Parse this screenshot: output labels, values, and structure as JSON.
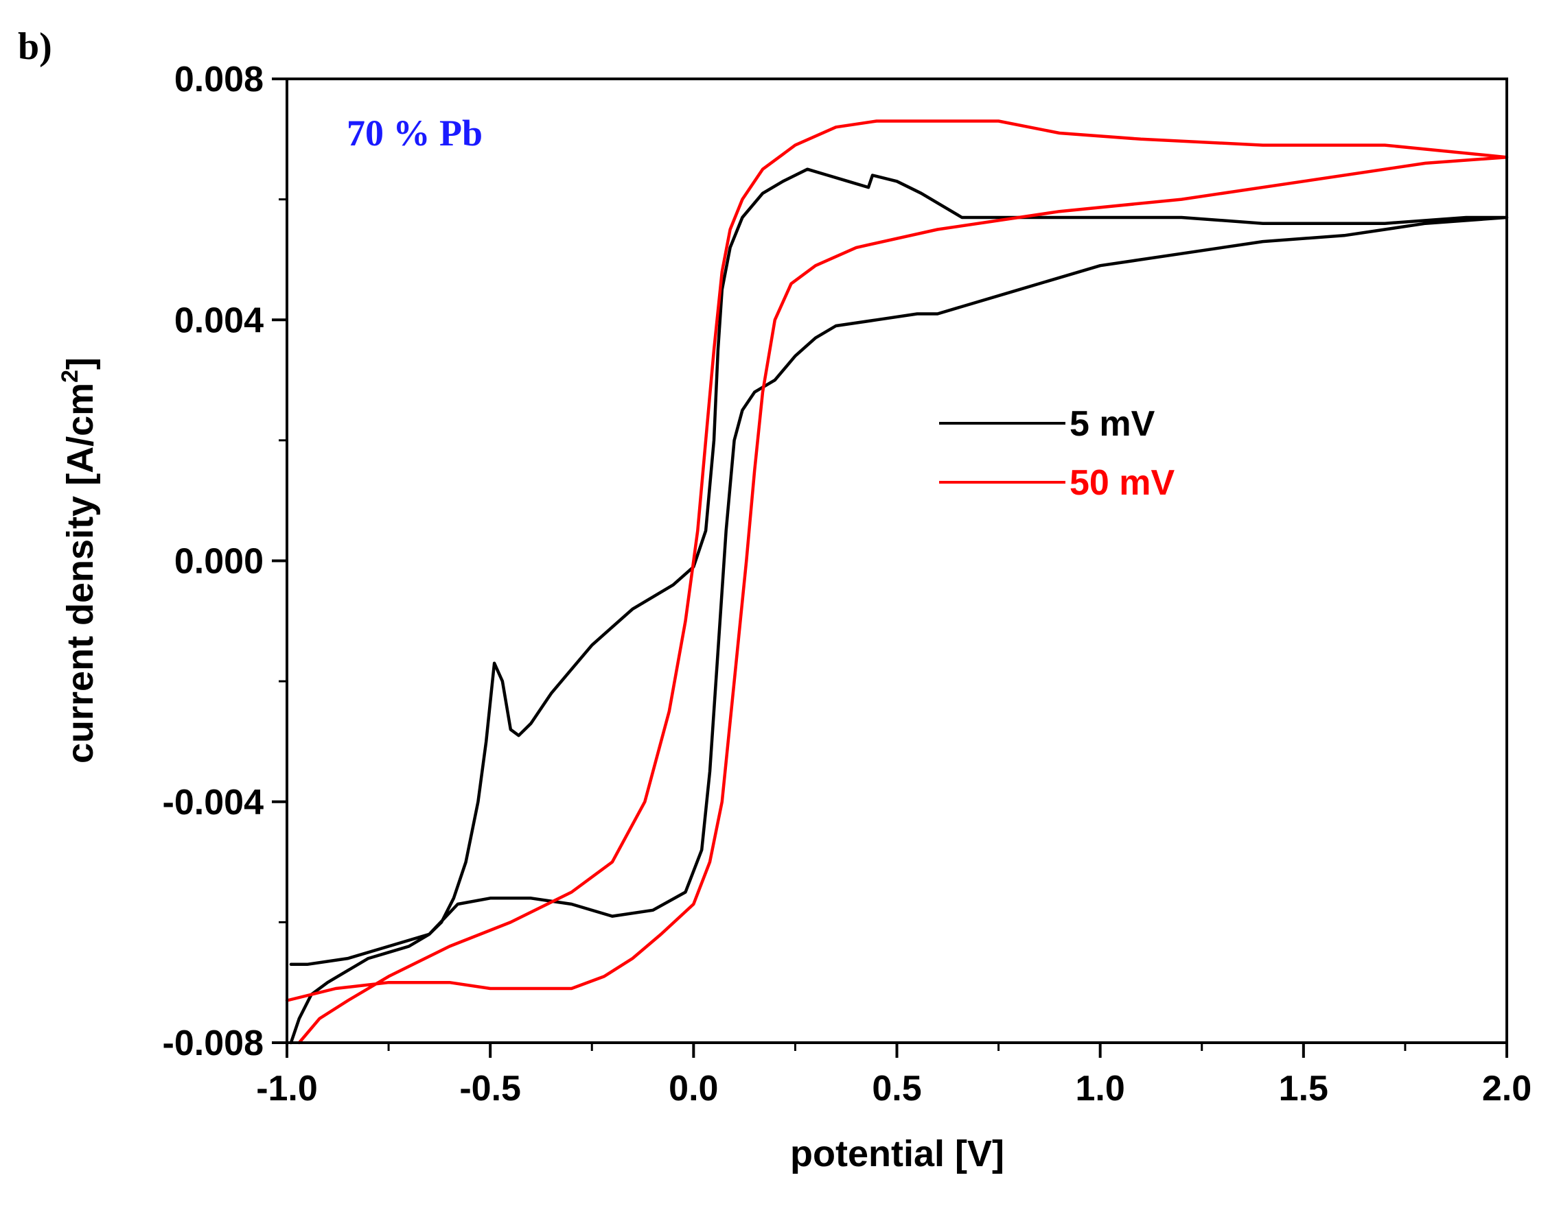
{
  "chart_data": {
    "type": "line",
    "panel_label": "b)",
    "annotation": "70 % Pb",
    "xlabel": "potential [V]",
    "ylabel_main": "current density [A/cm",
    "ylabel_sup": "2",
    "ylabel_close": "]",
    "xlim": [
      -1.0,
      2.0
    ],
    "ylim": [
      -0.008,
      0.008
    ],
    "xticks": [
      -1.0,
      -0.5,
      0.0,
      0.5,
      1.0,
      1.5,
      2.0
    ],
    "xtick_labels": [
      "-1.0",
      "-0.5",
      "0.0",
      "0.5",
      "1.0",
      "1.5",
      "2.0"
    ],
    "yticks": [
      -0.008,
      -0.004,
      0.0,
      0.004,
      0.008
    ],
    "ytick_labels": [
      "-0.008",
      "-0.004",
      "0.000",
      "0.004",
      "0.008"
    ],
    "legend_position": "center-right",
    "colors": {
      "annotation": "#1a1aff",
      "axis": "#000000"
    },
    "series": [
      {
        "name": "5 mV",
        "color": "#000000",
        "points": [
          [
            -0.99,
            -0.008
          ],
          [
            -0.97,
            -0.0076
          ],
          [
            -0.94,
            -0.0072
          ],
          [
            -0.9,
            -0.007
          ],
          [
            -0.85,
            -0.0068
          ],
          [
            -0.8,
            -0.0066
          ],
          [
            -0.75,
            -0.0065
          ],
          [
            -0.7,
            -0.0064
          ],
          [
            -0.65,
            -0.0062
          ],
          [
            -0.62,
            -0.006
          ],
          [
            -0.59,
            -0.0056
          ],
          [
            -0.56,
            -0.005
          ],
          [
            -0.53,
            -0.004
          ],
          [
            -0.51,
            -0.003
          ],
          [
            -0.49,
            -0.0017
          ],
          [
            -0.47,
            -0.002
          ],
          [
            -0.45,
            -0.0028
          ],
          [
            -0.43,
            -0.0029
          ],
          [
            -0.4,
            -0.0027
          ],
          [
            -0.35,
            -0.0022
          ],
          [
            -0.3,
            -0.0018
          ],
          [
            -0.25,
            -0.0014
          ],
          [
            -0.2,
            -0.0011
          ],
          [
            -0.15,
            -0.0008
          ],
          [
            -0.1,
            -0.0006
          ],
          [
            -0.05,
            -0.0004
          ],
          [
            0.0,
            -0.0001
          ],
          [
            0.03,
            0.0005
          ],
          [
            0.05,
            0.002
          ],
          [
            0.06,
            0.0035
          ],
          [
            0.07,
            0.0045
          ],
          [
            0.09,
            0.0052
          ],
          [
            0.12,
            0.0057
          ],
          [
            0.17,
            0.0061
          ],
          [
            0.22,
            0.0063
          ],
          [
            0.28,
            0.0065
          ],
          [
            0.33,
            0.0064
          ],
          [
            0.38,
            0.0063
          ],
          [
            0.43,
            0.0062
          ],
          [
            0.44,
            0.0064
          ],
          [
            0.5,
            0.0063
          ],
          [
            0.56,
            0.0061
          ],
          [
            0.61,
            0.0059
          ],
          [
            0.66,
            0.0057
          ],
          [
            0.8,
            0.0057
          ],
          [
            1.0,
            0.0057
          ],
          [
            1.2,
            0.0057
          ],
          [
            1.4,
            0.0056
          ],
          [
            1.5,
            0.0056
          ],
          [
            1.7,
            0.0056
          ],
          [
            1.9,
            0.0057
          ],
          [
            2.0,
            0.0057
          ],
          [
            1.8,
            0.0056
          ],
          [
            1.6,
            0.0054
          ],
          [
            1.4,
            0.0053
          ],
          [
            1.2,
            0.0051
          ],
          [
            1.0,
            0.0049
          ],
          [
            0.8,
            0.0045
          ],
          [
            0.6,
            0.0041
          ],
          [
            0.55,
            0.0041
          ],
          [
            0.45,
            0.004
          ],
          [
            0.35,
            0.0039
          ],
          [
            0.3,
            0.0037
          ],
          [
            0.25,
            0.0034
          ],
          [
            0.2,
            0.003
          ],
          [
            0.15,
            0.0028
          ],
          [
            0.12,
            0.0025
          ],
          [
            0.1,
            0.002
          ],
          [
            0.08,
            0.0005
          ],
          [
            0.06,
            -0.0015
          ],
          [
            0.04,
            -0.0035
          ],
          [
            0.02,
            -0.0048
          ],
          [
            -0.02,
            -0.0055
          ],
          [
            -0.1,
            -0.0058
          ],
          [
            -0.2,
            -0.0059
          ],
          [
            -0.3,
            -0.0057
          ],
          [
            -0.4,
            -0.0056
          ],
          [
            -0.5,
            -0.0056
          ],
          [
            -0.58,
            -0.0057
          ],
          [
            -0.65,
            -0.0062
          ],
          [
            -0.75,
            -0.0064
          ],
          [
            -0.85,
            -0.0066
          ],
          [
            -0.95,
            -0.0067
          ],
          [
            -0.99,
            -0.0067
          ]
        ]
      },
      {
        "name": "50 mV",
        "color": "#ff0000",
        "points": [
          [
            -0.97,
            -0.008
          ],
          [
            -0.92,
            -0.0076
          ],
          [
            -0.85,
            -0.0073
          ],
          [
            -0.75,
            -0.0069
          ],
          [
            -0.6,
            -0.0064
          ],
          [
            -0.45,
            -0.006
          ],
          [
            -0.3,
            -0.0055
          ],
          [
            -0.2,
            -0.005
          ],
          [
            -0.12,
            -0.004
          ],
          [
            -0.06,
            -0.0025
          ],
          [
            -0.02,
            -0.001
          ],
          [
            0.01,
            0.0005
          ],
          [
            0.03,
            0.002
          ],
          [
            0.05,
            0.0035
          ],
          [
            0.07,
            0.0048
          ],
          [
            0.09,
            0.0055
          ],
          [
            0.12,
            0.006
          ],
          [
            0.17,
            0.0065
          ],
          [
            0.25,
            0.0069
          ],
          [
            0.35,
            0.0072
          ],
          [
            0.45,
            0.0073
          ],
          [
            0.6,
            0.0073
          ],
          [
            0.75,
            0.0073
          ],
          [
            0.9,
            0.0071
          ],
          [
            1.1,
            0.007
          ],
          [
            1.4,
            0.0069
          ],
          [
            1.7,
            0.0069
          ],
          [
            2.0,
            0.0067
          ],
          [
            1.8,
            0.0066
          ],
          [
            1.5,
            0.0063
          ],
          [
            1.2,
            0.006
          ],
          [
            0.9,
            0.0058
          ],
          [
            0.6,
            0.0055
          ],
          [
            0.4,
            0.0052
          ],
          [
            0.3,
            0.0049
          ],
          [
            0.24,
            0.0046
          ],
          [
            0.2,
            0.004
          ],
          [
            0.17,
            0.0028
          ],
          [
            0.15,
            0.0015
          ],
          [
            0.13,
            0.0
          ],
          [
            0.1,
            -0.002
          ],
          [
            0.07,
            -0.004
          ],
          [
            0.04,
            -0.005
          ],
          [
            0.0,
            -0.0057
          ],
          [
            -0.08,
            -0.0062
          ],
          [
            -0.15,
            -0.0066
          ],
          [
            -0.22,
            -0.0069
          ],
          [
            -0.3,
            -0.0071
          ],
          [
            -0.4,
            -0.0071
          ],
          [
            -0.5,
            -0.0071
          ],
          [
            -0.6,
            -0.007
          ],
          [
            -0.75,
            -0.007
          ],
          [
            -0.88,
            -0.0071
          ],
          [
            -1.0,
            -0.0073
          ]
        ]
      }
    ]
  }
}
